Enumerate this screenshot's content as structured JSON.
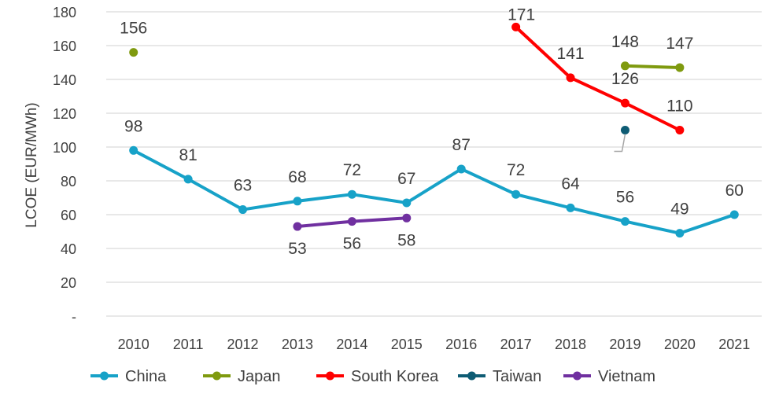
{
  "chart_data": {
    "type": "line",
    "title": "",
    "xlabel": "",
    "ylabel": "LCOE (EUR/MWh)",
    "ylim": [
      0,
      180
    ],
    "yticks": [
      {
        "value": 0,
        "label": "-"
      },
      {
        "value": 20,
        "label": "20"
      },
      {
        "value": 40,
        "label": "40"
      },
      {
        "value": 60,
        "label": "60"
      },
      {
        "value": 80,
        "label": "80"
      },
      {
        "value": 100,
        "label": "100"
      },
      {
        "value": 120,
        "label": "120"
      },
      {
        "value": 140,
        "label": "140"
      },
      {
        "value": 160,
        "label": "160"
      },
      {
        "value": 180,
        "label": "180"
      }
    ],
    "categories": [
      "2010",
      "2011",
      "2012",
      "2013",
      "2014",
      "2015",
      "2016",
      "2017",
      "2018",
      "2019",
      "2020",
      "2021"
    ],
    "grid": true,
    "legend_position": "bottom",
    "series": [
      {
        "name": "China",
        "color": "#17a2c8",
        "label_pos": "above",
        "values": [
          98,
          81,
          63,
          68,
          72,
          67,
          87,
          72,
          64,
          56,
          49,
          60
        ]
      },
      {
        "name": "Japan",
        "color": "#7f9a0f",
        "label_pos": "above",
        "values": [
          156,
          null,
          null,
          null,
          null,
          null,
          null,
          null,
          null,
          148,
          147,
          null
        ]
      },
      {
        "name": "South Korea",
        "color": "#ff0000",
        "label_pos": "above",
        "values": [
          null,
          null,
          null,
          null,
          null,
          null,
          null,
          171,
          141,
          126,
          110,
          null
        ]
      },
      {
        "name": "Taiwan",
        "color": "#0e5c74",
        "label_pos": "none",
        "values": [
          null,
          null,
          null,
          null,
          null,
          null,
          null,
          null,
          null,
          110,
          null,
          null
        ]
      },
      {
        "name": "Vietnam",
        "color": "#7030a0",
        "label_pos": "below",
        "values": [
          null,
          null,
          null,
          53,
          56,
          58,
          null,
          null,
          null,
          null,
          null,
          null
        ]
      }
    ]
  }
}
